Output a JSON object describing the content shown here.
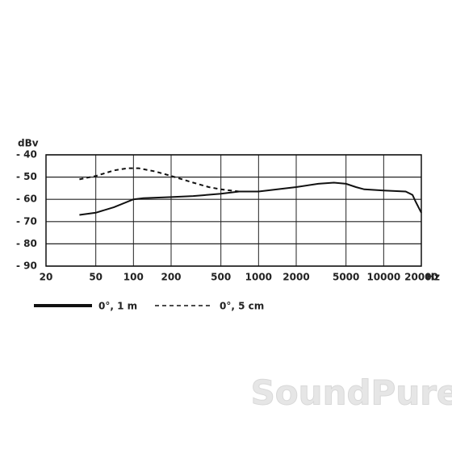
{
  "chart_data": {
    "type": "line",
    "x_label": "Hz",
    "y_label": "dBv",
    "log_x": true,
    "grid": true,
    "xlim": [
      20,
      20000
    ],
    "ylim": [
      -90,
      -40
    ],
    "xticks": [
      20,
      50,
      100,
      200,
      500,
      1000,
      2000,
      5000,
      10000,
      20000
    ],
    "yticks": [
      {
        "value": -40,
        "label": "- 40"
      },
      {
        "value": -50,
        "label": "- 50"
      },
      {
        "value": -60,
        "label": "- 60"
      },
      {
        "value": -70,
        "label": "- 70"
      },
      {
        "value": -80,
        "label": "- 80"
      },
      {
        "value": -90,
        "label": "- 90"
      }
    ],
    "series": [
      {
        "name": "0°, 1 m",
        "color": "#111111",
        "dashed": false,
        "x": [
          37,
          50,
          70,
          100,
          120,
          200,
          300,
          500,
          700,
          1000,
          2000,
          3000,
          4000,
          5000,
          6000,
          7000,
          10000,
          15000,
          17000,
          18000,
          20000
        ],
        "values": [
          -67,
          -66,
          -63.5,
          -60,
          -59.5,
          -59,
          -58.5,
          -57.5,
          -56.5,
          -56.5,
          -54.5,
          -53,
          -52.5,
          -53,
          -54.5,
          -55.5,
          -56,
          -56.5,
          -58,
          -61,
          -66
        ]
      },
      {
        "name": "0°, 5 cm",
        "color": "#111111",
        "dashed": true,
        "x": [
          37,
          50,
          70,
          90,
          110,
          150,
          200,
          300,
          400,
          500,
          700,
          1000
        ],
        "values": [
          -51,
          -49.5,
          -47,
          -46,
          -46,
          -47.5,
          -49.5,
          -52.5,
          -54.5,
          -55.5,
          -56.5,
          -56.5
        ]
      }
    ],
    "watermark": "SoundPure"
  }
}
